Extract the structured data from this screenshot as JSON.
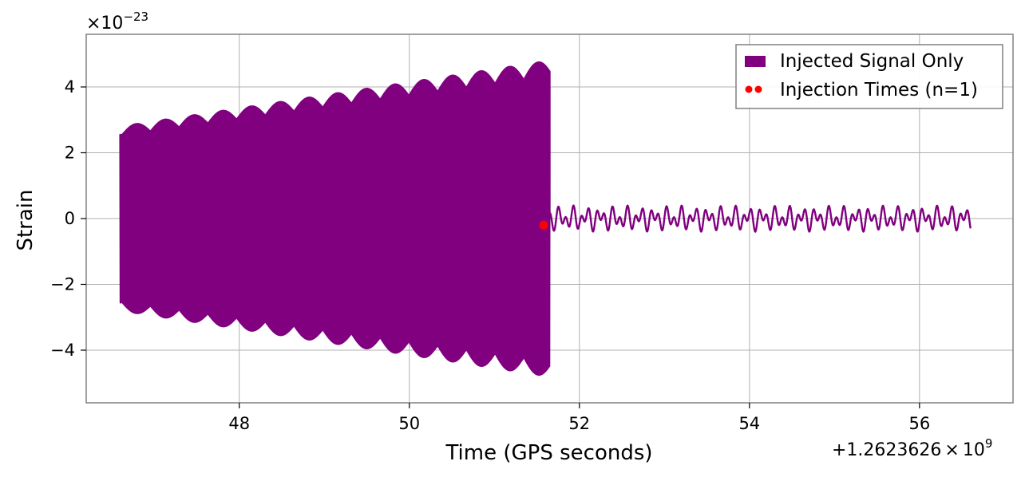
{
  "chart_data": {
    "type": "line",
    "xlabel": "Time (GPS seconds)",
    "ylabel": "Strain",
    "x_offset_label": "+1.2623626",
    "x_offset_times": "×",
    "x_offset_exp_base": "10",
    "x_offset_exp": "9",
    "y_scale_base": "×10",
    "y_scale_exp": "−23",
    "xlim": [
      46.2,
      57.1
    ],
    "ylim": [
      -5.6,
      5.6
    ],
    "x_ticks": [
      48,
      50,
      52,
      54,
      56
    ],
    "x_tick_labels": [
      "48",
      "50",
      "52",
      "54",
      "56"
    ],
    "y_ticks": [
      4,
      2,
      0,
      -2,
      -4
    ],
    "y_tick_labels": [
      "4",
      "2",
      "0",
      "−2",
      "−4"
    ],
    "grid": true,
    "legend_position": "top-right",
    "series": [
      {
        "name": "Injected Signal Only",
        "color": "#800080",
        "segments": [
          {
            "t_start": 46.6,
            "t_end": 51.65,
            "amplitude_start": 2.8,
            "amplitude_end": 4.8
          },
          {
            "t_start": 51.65,
            "t_end": 56.6,
            "amplitude": 0.4
          }
        ]
      },
      {
        "name": "Injection Times (n=1)",
        "color": "#ff0000",
        "marker": "circle",
        "points": [
          {
            "x": 51.58,
            "y": -0.2
          }
        ]
      }
    ]
  }
}
